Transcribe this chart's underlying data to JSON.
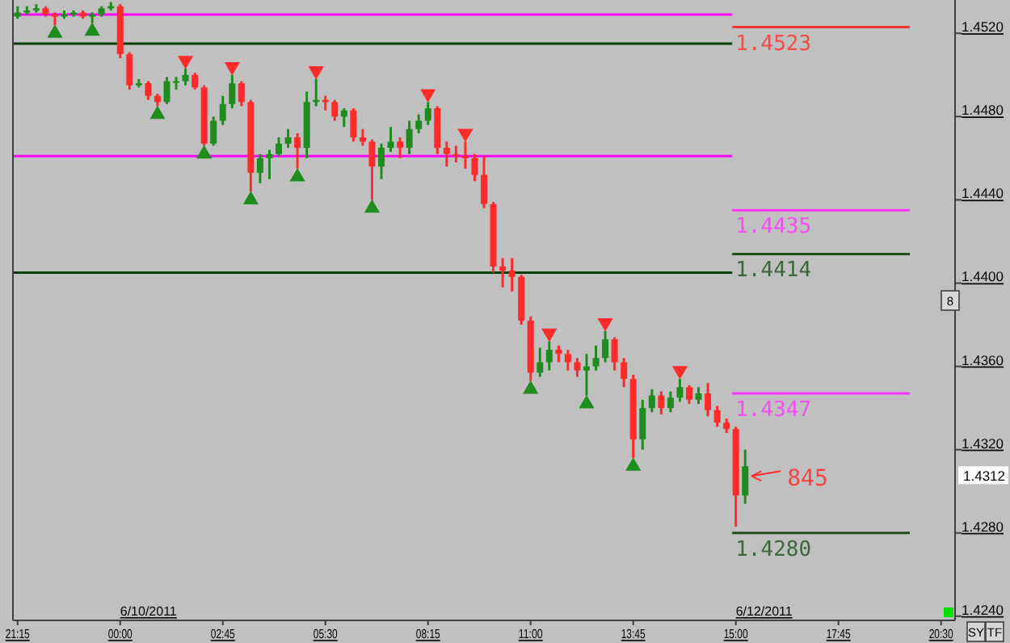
{
  "chart_data": {
    "type": "candlestick",
    "categories": [
      "21:15",
      null,
      null,
      null,
      null,
      null,
      null,
      null,
      null,
      null,
      null,
      "00:00",
      null,
      null,
      null,
      null,
      null,
      null,
      null,
      null,
      null,
      null,
      "02:45",
      null,
      null,
      null,
      null,
      null,
      null,
      null,
      null,
      null,
      null,
      "05:30",
      null,
      null,
      null,
      null,
      null,
      null,
      null,
      null,
      null,
      null,
      "08:15",
      null,
      null,
      null,
      null,
      null,
      null,
      null,
      null,
      null,
      null,
      "11:00",
      null,
      null,
      null,
      null,
      null,
      null,
      null,
      null,
      null,
      null,
      "13:45",
      null,
      null,
      null,
      null,
      null,
      null,
      null,
      null,
      null,
      null,
      "15:00",
      null,
      null,
      null,
      null,
      null,
      null,
      null,
      null,
      null,
      null,
      "17:45",
      null,
      null,
      null,
      null,
      null,
      null,
      null,
      null,
      null,
      null,
      "20:30",
      null
    ],
    "ohlc": [
      [
        1.4528,
        1.4533,
        1.4527,
        1.453
      ],
      [
        1.453,
        1.4533,
        1.4529,
        1.4531
      ],
      [
        1.4531,
        1.4534,
        1.453,
        1.4532
      ],
      [
        1.4532,
        1.4533,
        1.4528,
        1.4529
      ],
      [
        1.4529,
        1.453,
        1.4524,
        1.4528
      ],
      [
        1.4528,
        1.4531,
        1.4527,
        1.4529
      ],
      [
        1.4529,
        1.4531,
        1.4528,
        1.453
      ],
      [
        1.453,
        1.4531,
        1.4527,
        1.4528
      ],
      [
        1.4528,
        1.453,
        1.4525,
        1.4529
      ],
      [
        1.4529,
        1.4533,
        1.4528,
        1.4532
      ],
      [
        1.4532,
        1.4535,
        1.4531,
        1.4533
      ],
      [
        1.4533,
        1.4534,
        1.4508,
        1.451
      ],
      [
        1.451,
        1.4511,
        1.4493,
        1.4495
      ],
      [
        1.4495,
        1.4498,
        1.4494,
        1.4496
      ],
      [
        1.4496,
        1.4497,
        1.4488,
        1.449
      ],
      [
        1.449,
        1.4491,
        1.4485,
        1.4487
      ],
      [
        1.4487,
        1.4499,
        1.4486,
        1.4497
      ],
      [
        1.4497,
        1.4499,
        1.4493,
        1.4497
      ],
      [
        1.4497,
        1.4503,
        1.4495,
        1.45
      ],
      [
        1.45,
        1.4501,
        1.4493,
        1.4494
      ],
      [
        1.4494,
        1.4495,
        1.4466,
        1.4467
      ],
      [
        1.4467,
        1.448,
        1.4466,
        1.4478
      ],
      [
        1.4478,
        1.449,
        1.4476,
        1.4486
      ],
      [
        1.4486,
        1.45,
        1.4484,
        1.4496
      ],
      [
        1.4496,
        1.4497,
        1.4485,
        1.4487
      ],
      [
        1.4487,
        1.4488,
        1.4444,
        1.4453
      ],
      [
        1.4453,
        1.4462,
        1.4448,
        1.446
      ],
      [
        1.446,
        1.4464,
        1.445,
        1.4462
      ],
      [
        1.4462,
        1.447,
        1.4461,
        1.4467
      ],
      [
        1.4467,
        1.4474,
        1.4465,
        1.447
      ],
      [
        1.447,
        1.4472,
        1.4455,
        1.4465
      ],
      [
        1.4465,
        1.4492,
        1.446,
        1.4487
      ],
      [
        1.4487,
        1.4498,
        1.4485,
        1.4488
      ],
      [
        1.4488,
        1.449,
        1.4483,
        1.4487
      ],
      [
        1.4487,
        1.4488,
        1.4478,
        1.448
      ],
      [
        1.448,
        1.4484,
        1.4475,
        1.4483
      ],
      [
        1.4483,
        1.4484,
        1.4468,
        1.447
      ],
      [
        1.447,
        1.4474,
        1.4466,
        1.4468
      ],
      [
        1.4468,
        1.4469,
        1.444,
        1.4456
      ],
      [
        1.4456,
        1.4467,
        1.445,
        1.4465
      ],
      [
        1.4465,
        1.4475,
        1.4463,
        1.4468
      ],
      [
        1.4468,
        1.447,
        1.446,
        1.4465
      ],
      [
        1.4465,
        1.4478,
        1.4462,
        1.4474
      ],
      [
        1.4474,
        1.4481,
        1.4472,
        1.4478
      ],
      [
        1.4478,
        1.4487,
        1.4476,
        1.4484
      ],
      [
        1.4484,
        1.4485,
        1.4462,
        1.4465
      ],
      [
        1.4465,
        1.4468,
        1.4456,
        1.4462
      ],
      [
        1.4462,
        1.4466,
        1.4458,
        1.4461
      ],
      [
        1.4461,
        1.4468,
        1.4455,
        1.446
      ],
      [
        1.446,
        1.4462,
        1.4449,
        1.4452
      ],
      [
        1.4452,
        1.4461,
        1.4436,
        1.4438
      ],
      [
        1.4438,
        1.4439,
        1.4405,
        1.4408
      ],
      [
        1.4408,
        1.4412,
        1.4398,
        1.4406
      ],
      [
        1.4406,
        1.4412,
        1.4396,
        1.4403
      ],
      [
        1.4403,
        1.4404,
        1.438,
        1.4382
      ],
      [
        1.4382,
        1.4384,
        1.4353,
        1.4357
      ],
      [
        1.4357,
        1.4369,
        1.4355,
        1.4362
      ],
      [
        1.4362,
        1.4372,
        1.4358,
        1.4368
      ],
      [
        1.4368,
        1.437,
        1.4362,
        1.4366
      ],
      [
        1.4366,
        1.4368,
        1.4358,
        1.4362
      ],
      [
        1.4362,
        1.4364,
        1.4355,
        1.4358
      ],
      [
        1.4358,
        1.4366,
        1.4346,
        1.436
      ],
      [
        1.436,
        1.437,
        1.4358,
        1.4364
      ],
      [
        1.4364,
        1.4377,
        1.4362,
        1.4373
      ],
      [
        1.4373,
        1.4374,
        1.4358,
        1.4362
      ],
      [
        1.4362,
        1.4364,
        1.435,
        1.4354
      ],
      [
        1.4354,
        1.4356,
        1.4316,
        1.4325
      ],
      [
        1.4325,
        1.4344,
        1.432,
        1.434
      ],
      [
        1.434,
        1.4349,
        1.4338,
        1.4346
      ],
      [
        1.4346,
        1.4348,
        1.4337,
        1.434
      ],
      [
        1.434,
        1.4348,
        1.4338,
        1.4345
      ],
      [
        1.4345,
        1.4354,
        1.4343,
        1.435
      ],
      [
        1.435,
        1.4351,
        1.4342,
        1.4344
      ],
      [
        1.4344,
        1.435,
        1.4342,
        1.4347
      ],
      [
        1.4347,
        1.4352,
        1.4336,
        1.4339
      ],
      [
        1.4339,
        1.4341,
        1.4331,
        1.4333
      ],
      [
        1.4333,
        1.4335,
        1.4328,
        1.433
      ],
      [
        1.433,
        1.4331,
        1.4283,
        1.4298
      ],
      [
        1.4298,
        1.432,
        1.4294,
        1.4312
      ],
      null,
      null,
      null,
      null,
      null,
      null,
      null,
      null,
      null,
      null,
      null,
      null,
      null,
      null,
      null,
      null,
      null,
      null,
      null,
      null,
      null,
      null
    ],
    "colors": [
      "#1e8c1e",
      "#1e8c1e",
      "#1e8c1e",
      "#ff2a2a",
      "#ff2a2a",
      "#1e8c1e",
      "#1e8c1e",
      "#ff2a2a",
      "#1e8c1e",
      "#1e8c1e",
      "#1e8c1e",
      "#ff2a2a",
      "#ff2a2a",
      "#1e8c1e",
      "#ff2a2a",
      "#ff2a2a",
      "#1e8c1e",
      "#1e8c1e",
      "#1e8c1e",
      "#ff2a2a",
      "#ff2a2a",
      "#1e8c1e",
      "#1e8c1e",
      "#1e8c1e",
      "#ff2a2a",
      "#ff2a2a",
      "#1e8c1e",
      "#1e8c1e",
      "#1e8c1e",
      "#1e8c1e",
      "#ff2a2a",
      "#1e8c1e",
      "#1e8c1e",
      "#ff2a2a",
      "#ff2a2a",
      "#1e8c1e",
      "#ff2a2a",
      "#ff2a2a",
      "#ff2a2a",
      "#1e8c1e",
      "#1e8c1e",
      "#ff2a2a",
      "#1e8c1e",
      "#1e8c1e",
      "#1e8c1e",
      "#ff2a2a",
      "#ff2a2a",
      "#ff2a2a",
      "#ff2a2a",
      "#ff2a2a",
      "#ff2a2a",
      "#ff2a2a",
      "#ff2a2a",
      "#ff2a2a",
      "#ff2a2a",
      "#ff2a2a",
      "#1e8c1e",
      "#1e8c1e",
      "#ff2a2a",
      "#ff2a2a",
      "#ff2a2a",
      "#1e8c1e",
      "#1e8c1e",
      "#1e8c1e",
      "#ff2a2a",
      "#ff2a2a",
      "#ff2a2a",
      "#1e8c1e",
      "#1e8c1e",
      "#ff2a2a",
      "#1e8c1e",
      "#1e8c1e",
      "#ff2a2a",
      "#1e8c1e",
      "#ff2a2a",
      "#ff2a2a",
      "#ff2a2a",
      "#ff2a2a",
      "#1e8c1e",
      null,
      null,
      null,
      null,
      null,
      null,
      null,
      null,
      null,
      null,
      null,
      null,
      null,
      null,
      null,
      null,
      null,
      null,
      null,
      null,
      null,
      null
    ],
    "series": [
      {
        "type": "scatter",
        "color": "#1e8c1e",
        "marker": "triangle",
        "values": [
          null,
          null,
          null,
          null,
          1.452,
          null,
          null,
          null,
          1.4521,
          null,
          null,
          null,
          null,
          null,
          null,
          1.4481,
          null,
          null,
          null,
          null,
          1.4462,
          null,
          null,
          null,
          null,
          1.444,
          null,
          null,
          null,
          null,
          1.4451,
          null,
          null,
          null,
          null,
          null,
          null,
          null,
          1.4436,
          null,
          null,
          null,
          null,
          null,
          null,
          null,
          null,
          null,
          null,
          null,
          null,
          null,
          null,
          null,
          null,
          1.4349,
          null,
          null,
          null,
          null,
          null,
          1.4342,
          null,
          null,
          null,
          null,
          1.4312,
          null,
          null,
          null,
          null,
          null,
          null,
          null,
          null,
          null,
          null,
          null,
          null,
          null,
          null,
          null,
          null,
          null,
          null,
          null,
          null,
          null,
          null,
          null,
          null,
          null,
          null,
          null,
          null,
          null,
          null,
          null,
          null,
          null,
          null
        ]
      },
      {
        "type": "scatter",
        "color": "#ff2a2a",
        "marker": "triangle",
        "values": [
          null,
          null,
          null,
          null,
          null,
          null,
          null,
          null,
          null,
          null,
          null,
          null,
          null,
          null,
          null,
          null,
          null,
          null,
          1.4507,
          null,
          null,
          null,
          null,
          1.4504,
          null,
          null,
          null,
          null,
          null,
          null,
          null,
          null,
          1.4502,
          null,
          null,
          null,
          null,
          null,
          null,
          null,
          null,
          null,
          null,
          null,
          1.4491,
          null,
          null,
          null,
          1.4472,
          null,
          null,
          null,
          null,
          null,
          null,
          null,
          null,
          1.4376,
          null,
          null,
          null,
          null,
          null,
          1.4381,
          null,
          null,
          null,
          null,
          null,
          null,
          null,
          1.4358,
          null,
          null,
          null,
          null,
          null,
          null,
          null,
          null,
          null,
          null,
          null,
          null,
          null,
          null,
          null,
          null,
          null,
          null,
          null,
          null,
          null,
          null,
          null,
          null,
          null,
          null,
          null,
          null,
          null
        ]
      }
    ],
    "ylim": [
      1.4238,
      1.4536
    ],
    "yticks": [
      {
        "value": 1.424,
        "label": "1.4240"
      },
      {
        "value": 1.428,
        "label": "1.4280"
      },
      {
        "value": 1.432,
        "label": "1.4320"
      },
      {
        "value": 1.436,
        "label": "1.4360"
      },
      {
        "value": 1.44,
        "label": "1.4400"
      },
      {
        "value": 1.444,
        "label": "1.4440"
      },
      {
        "value": 1.448,
        "label": "1.4480"
      },
      {
        "value": 1.452,
        "label": "1.4520"
      }
    ],
    "ref_lines": [
      {
        "axis": "y",
        "value": 1.4529,
        "color": "#ff00ff"
      },
      {
        "axis": "y",
        "value": 1.4515,
        "color": "#004000"
      },
      {
        "axis": "y",
        "value": 1.4461,
        "color": "#ff00ff"
      },
      {
        "axis": "y",
        "value": 1.4405,
        "color": "#004000"
      },
      {
        "axis": "y",
        "value": 1.4523,
        "label": "1.4523",
        "color": "#ff3030"
      },
      {
        "axis": "y",
        "value": 1.4435,
        "label": "1.4435",
        "color": "#ff33ff"
      },
      {
        "axis": "y",
        "value": 1.4414,
        "label": "1.4414",
        "color": "#1f4f1f"
      },
      {
        "axis": "y",
        "value": 1.4347,
        "label": "1.4347",
        "color": "#ff33ff"
      },
      {
        "axis": "y",
        "value": 1.428,
        "label": "1.4280",
        "color": "#1f4f1f"
      }
    ],
    "annotations": [
      "845",
      "1.4312",
      "6/10/2011",
      "6/12/2011",
      "8",
      "SY",
      "TF"
    ],
    "grid": false
  }
}
